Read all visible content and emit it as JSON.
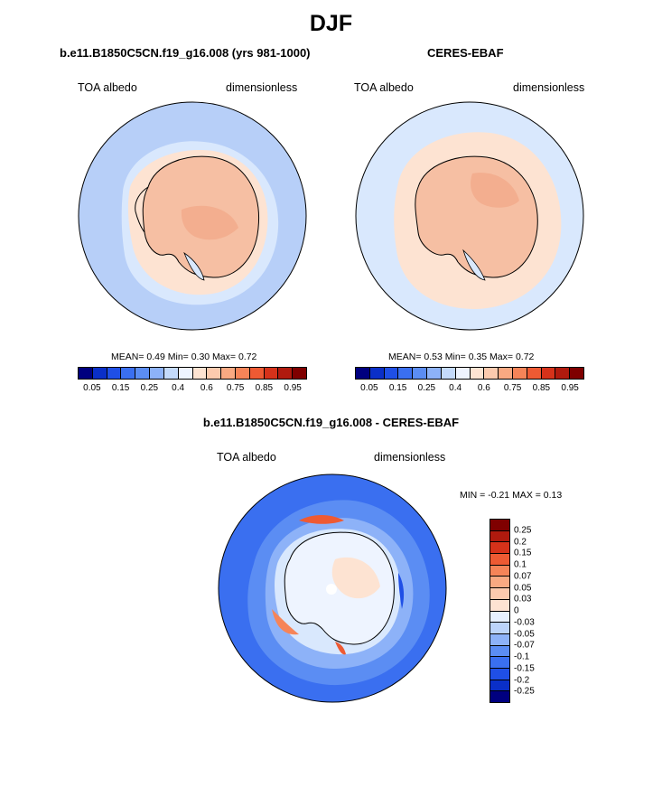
{
  "season": "DJF",
  "panels": {
    "left": {
      "title": "b.e11.B1850C5CN.f19_g16.008 (yrs 981-1000)",
      "variable": "TOA albedo",
      "units": "dimensionless",
      "stats": "MEAN=  0.49  Min=  0.30  Max=  0.72"
    },
    "right": {
      "title": "CERES-EBAF",
      "variable": "TOA albedo",
      "units": "dimensionless",
      "stats": "MEAN=  0.53  Min=  0.35  Max=  0.72"
    },
    "diff": {
      "title": "b.e11.B1850C5CN.f19_g16.008 - CERES-EBAF",
      "variable": "TOA albedo",
      "units": "dimensionless",
      "stats": "MIN =  -0.21 MAX =   0.13"
    }
  },
  "colorbar_top": {
    "colors": [
      "#00007f",
      "#0a2fc8",
      "#1f4fe6",
      "#3a6ff0",
      "#5b8df3",
      "#8db2f8",
      "#c4dafb",
      "#eef4ff",
      "#fde3d2",
      "#fccaae",
      "#f9a982",
      "#f68458",
      "#ee5a33",
      "#d6321a",
      "#b01a0e",
      "#7f0000"
    ],
    "tick_labels": [
      "0.05",
      "0.15",
      "0.25",
      "0.4",
      "0.6",
      "0.75",
      "0.85",
      "0.95"
    ]
  },
  "colorbar_diff": {
    "colors": [
      "#7f0000",
      "#b01a0e",
      "#d6321a",
      "#ee5a33",
      "#f68458",
      "#f9a982",
      "#fccaae",
      "#fde3d2",
      "#e8f1ff",
      "#bcd4fa",
      "#8db2f8",
      "#5b8df3",
      "#3a6ff0",
      "#1f4fe6",
      "#0a2fc8",
      "#00007f"
    ],
    "tick_labels": [
      "0.25",
      "0.2",
      "0.15",
      "0.1",
      "0.07",
      "0.05",
      "0.03",
      "0",
      "-0.03",
      "-0.05",
      "-0.07",
      "-0.1",
      "-0.15",
      "-0.2",
      "-0.25"
    ]
  },
  "map_colors": {
    "ocean_blue": "#b7cff8",
    "ocean_light": "#d9e8fd",
    "ice_peach": "#f6bfa3",
    "ice_light": "#fde3d2",
    "diff_blue": "#3a6ff0",
    "diff_mid": "#8db2f8",
    "diff_light": "#d9e8fd",
    "diff_red": "#ee5a33"
  }
}
